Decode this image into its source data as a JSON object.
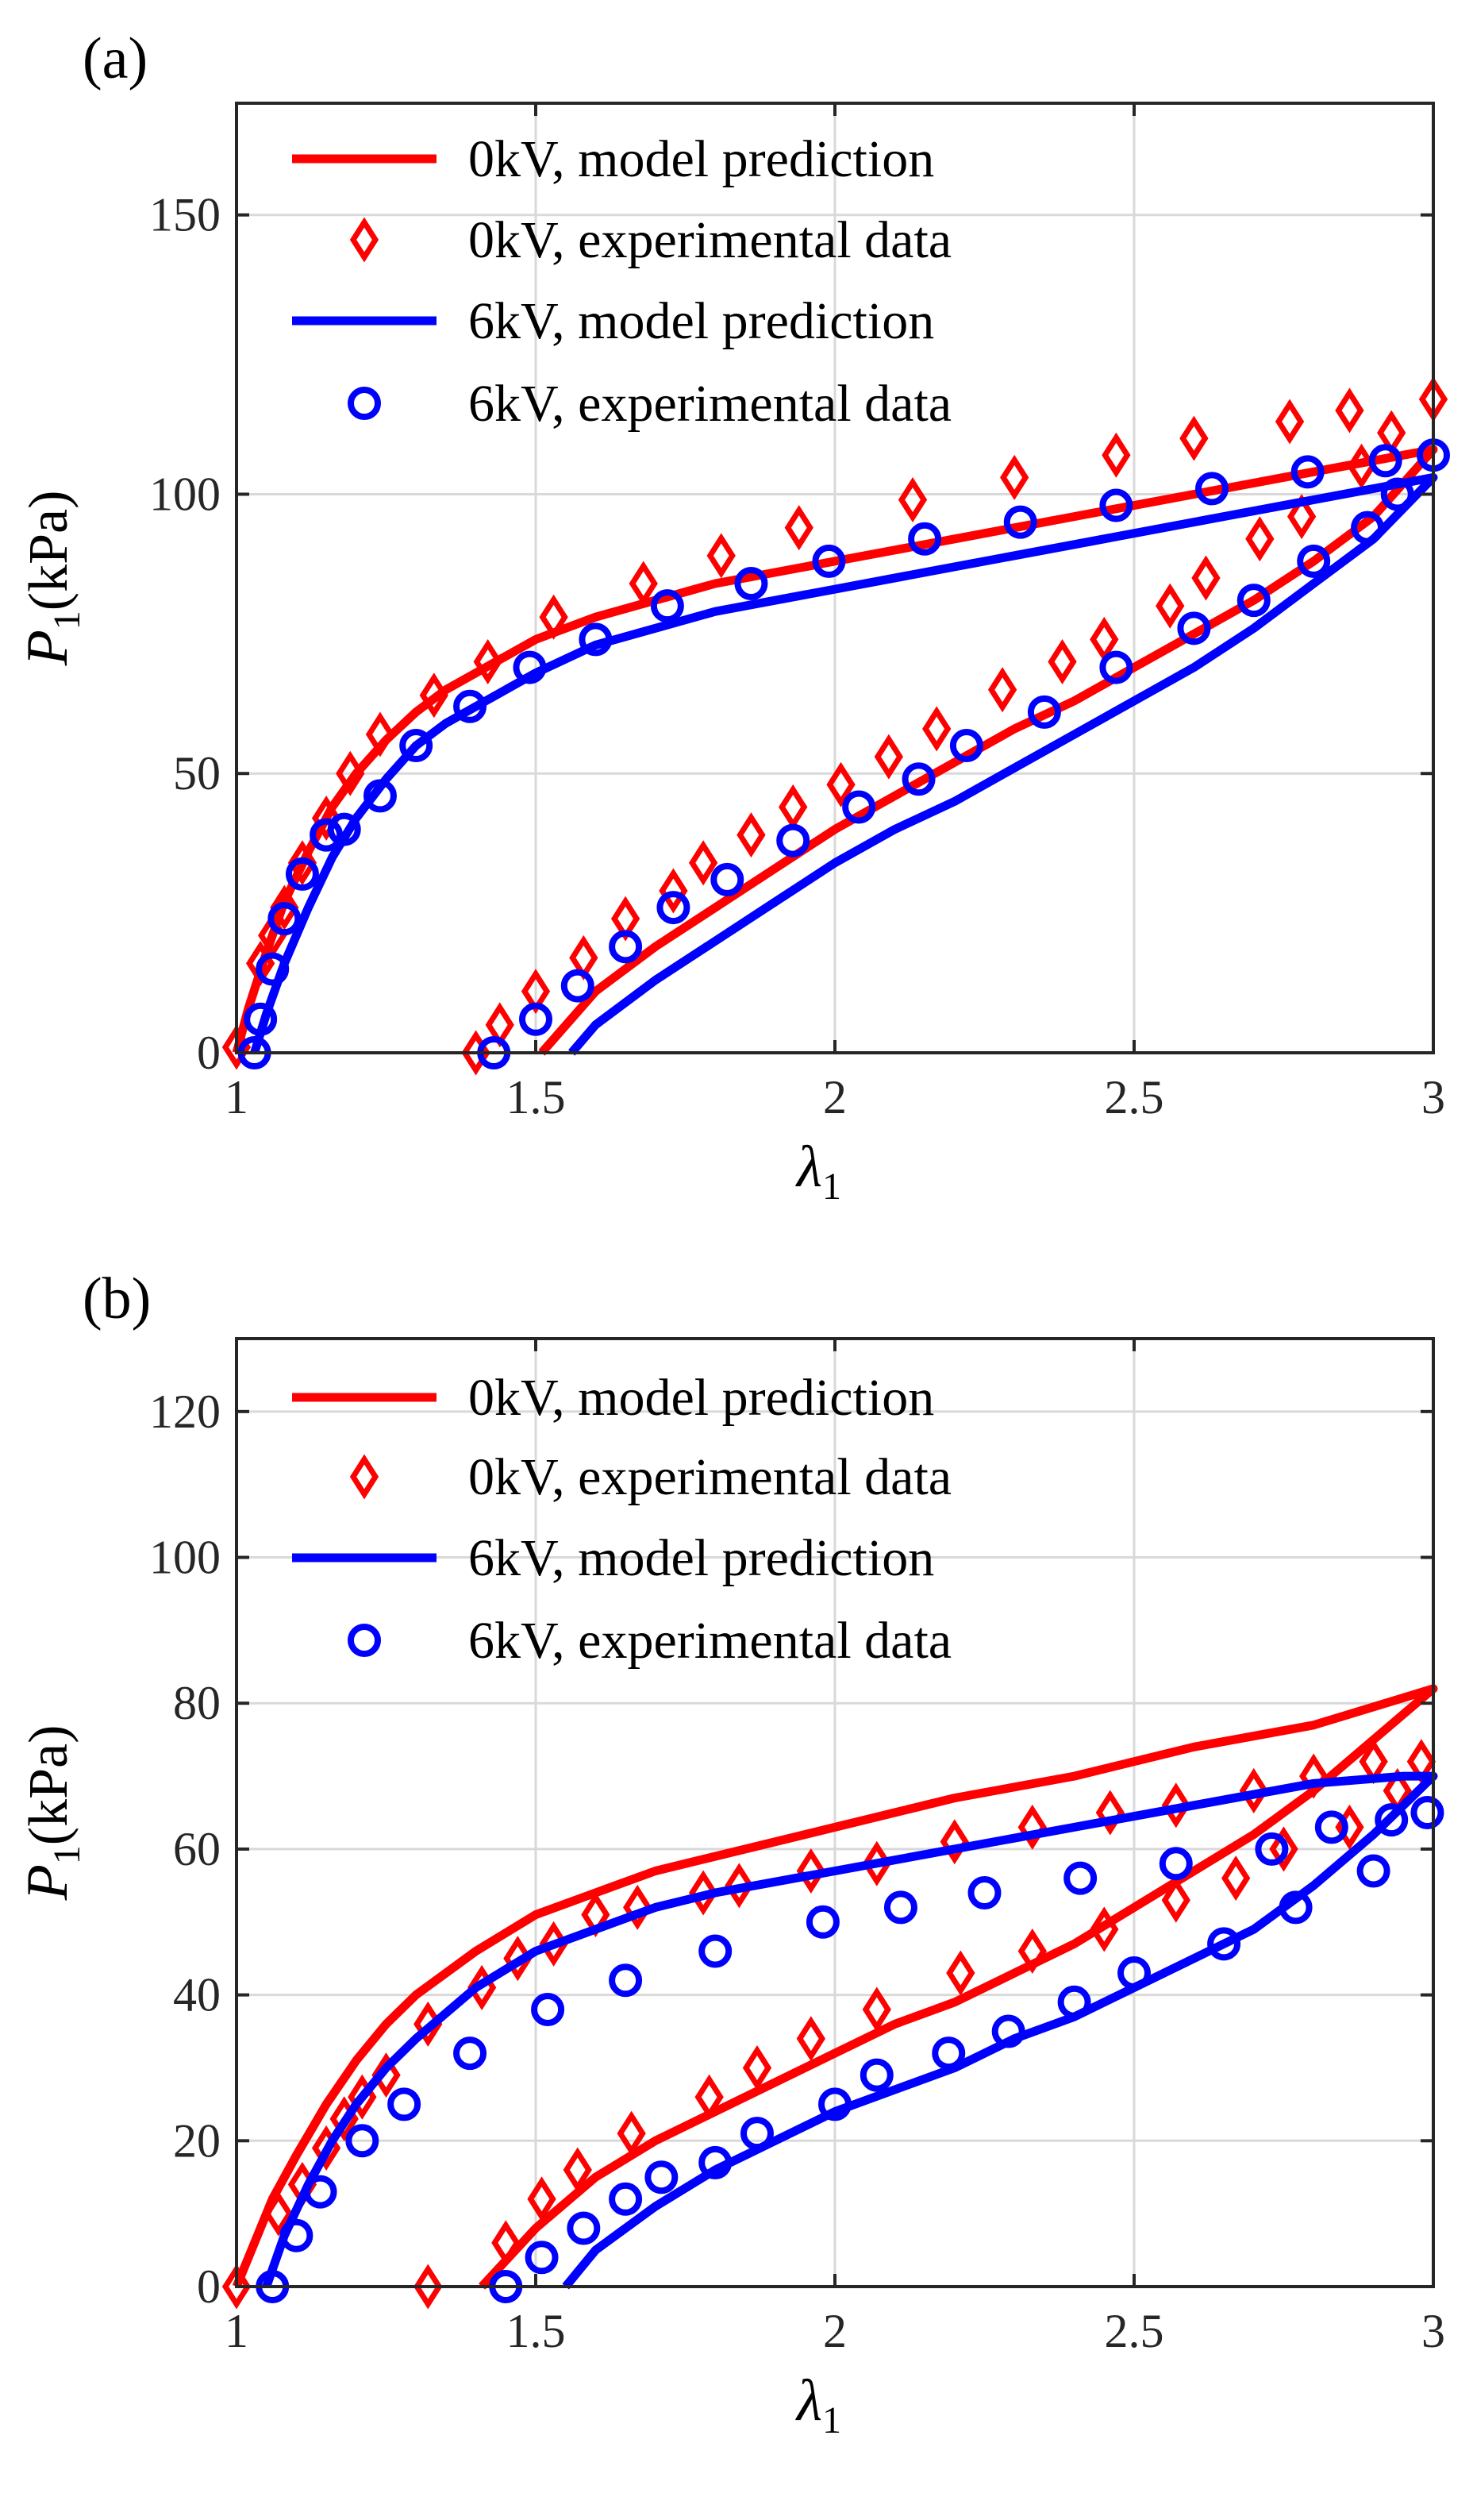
{
  "figure": {
    "colors": {
      "red": "#ff0000",
      "blue": "#0000ff",
      "grid": "#d9d9d9",
      "axis": "#262626"
    }
  },
  "chart_data": [
    {
      "panel_label": "(a)",
      "type": "line",
      "xlabel": "λ1",
      "ylabel": "P1(kPa)",
      "xlim": [
        1,
        3
      ],
      "ylim": [
        0,
        170
      ],
      "x_ticks": [
        1,
        1.5,
        2,
        2.5,
        3
      ],
      "y_ticks": [
        0,
        50,
        100,
        150
      ],
      "grid": true,
      "legend_position": "top-left",
      "series": [
        {
          "name": "0kV, model prediction",
          "kind": "line",
          "color": "#ff0000",
          "x": [
            1.0,
            1.02,
            1.05,
            1.08,
            1.12,
            1.16,
            1.2,
            1.25,
            1.3,
            1.35,
            1.4,
            1.5,
            1.6,
            1.7,
            1.8,
            2.0,
            2.2,
            2.4,
            2.6,
            2.8,
            3.0,
            2.9,
            2.8,
            2.7,
            2.6,
            2.5,
            2.4,
            2.3,
            2.2,
            2.1,
            2.0,
            1.9,
            1.8,
            1.7,
            1.6,
            1.51
          ],
          "y": [
            0,
            8,
            18,
            27,
            36,
            44,
            50,
            56,
            61,
            65,
            68,
            74,
            78,
            81,
            84,
            88,
            92,
            96,
            100,
            104,
            108,
            96,
            88,
            81,
            75,
            69,
            63,
            58,
            52,
            46,
            40,
            33,
            26,
            19,
            11,
            0
          ]
        },
        {
          "name": "0kV, experimental data",
          "kind": "marker",
          "marker": "diamond",
          "color": "#ff0000",
          "x": [
            1.0,
            1.04,
            1.06,
            1.08,
            1.11,
            1.15,
            1.19,
            1.24,
            1.33,
            1.42,
            1.53,
            1.68,
            1.81,
            1.94,
            2.13,
            2.3,
            2.47,
            2.6,
            2.76,
            2.86,
            2.93,
            3.0,
            2.88,
            2.78,
            2.71,
            2.62,
            2.56,
            2.45,
            2.38,
            2.28,
            2.17,
            2.09,
            2.01,
            1.93,
            1.86,
            1.78,
            1.73,
            1.65,
            1.58,
            1.5,
            1.44,
            1.4
          ],
          "y": [
            1,
            16,
            21,
            26,
            34,
            42,
            50,
            57,
            64,
            70,
            78,
            84,
            89,
            94,
            99,
            103,
            107,
            110,
            113,
            115,
            111,
            117,
            105,
            96,
            92,
            85,
            80,
            74,
            70,
            65,
            58,
            53,
            48,
            44,
            39,
            34,
            29,
            24,
            17,
            11,
            5,
            0
          ]
        },
        {
          "name": "6kV, model prediction",
          "kind": "line",
          "color": "#0000ff",
          "x": [
            1.03,
            1.05,
            1.08,
            1.12,
            1.16,
            1.2,
            1.25,
            1.3,
            1.35,
            1.4,
            1.5,
            1.6,
            1.7,
            1.8,
            2.0,
            2.2,
            2.4,
            2.6,
            2.8,
            3.0,
            2.9,
            2.8,
            2.7,
            2.6,
            2.5,
            2.4,
            2.3,
            2.2,
            2.1,
            2.0,
            1.9,
            1.8,
            1.7,
            1.6,
            1.56
          ],
          "y": [
            0,
            7,
            16,
            26,
            35,
            42,
            49,
            55,
            59,
            62,
            68,
            73,
            76,
            79,
            83,
            87,
            91,
            95,
            99,
            103,
            92,
            84,
            76,
            69,
            63,
            57,
            51,
            45,
            40,
            34,
            27,
            20,
            13,
            5,
            0
          ]
        },
        {
          "name": "6kV, experimental data",
          "kind": "marker",
          "marker": "circle",
          "color": "#0000ff",
          "x": [
            1.03,
            1.04,
            1.06,
            1.08,
            1.11,
            1.15,
            1.18,
            1.24,
            1.3,
            1.39,
            1.49,
            1.6,
            1.72,
            1.86,
            1.99,
            2.15,
            2.31,
            2.47,
            2.63,
            2.79,
            2.92,
            3.0,
            2.94,
            2.89,
            2.8,
            2.7,
            2.6,
            2.47,
            2.35,
            2.22,
            2.14,
            2.04,
            1.93,
            1.82,
            1.73,
            1.65,
            1.57,
            1.5,
            1.43
          ],
          "y": [
            0,
            6,
            15,
            24,
            32,
            39,
            40,
            46,
            55,
            62,
            69,
            74,
            80,
            84,
            88,
            92,
            95,
            98,
            101,
            104,
            106,
            107,
            100,
            94,
            88,
            81,
            76,
            69,
            61,
            55,
            49,
            44,
            38,
            31,
            26,
            19,
            12,
            6,
            0
          ]
        }
      ]
    },
    {
      "panel_label": "(b)",
      "type": "line",
      "xlabel": "λ1",
      "ylabel": "P1(kPa)",
      "xlim": [
        1,
        3
      ],
      "ylim": [
        0,
        130
      ],
      "x_ticks": [
        1,
        1.5,
        2,
        2.5,
        3
      ],
      "y_ticks": [
        0,
        20,
        40,
        60,
        80,
        100,
        120
      ],
      "grid": true,
      "legend_position": "top-left",
      "series": [
        {
          "name": "0kV, model prediction",
          "kind": "line",
          "color": "#ff0000",
          "x": [
            1.0,
            1.03,
            1.06,
            1.1,
            1.15,
            1.2,
            1.25,
            1.3,
            1.4,
            1.5,
            1.6,
            1.7,
            1.8,
            2.0,
            2.2,
            2.4,
            2.6,
            2.8,
            3.0,
            2.9,
            2.8,
            2.7,
            2.6,
            2.5,
            2.4,
            2.3,
            2.2,
            2.1,
            2.0,
            1.9,
            1.8,
            1.7,
            1.6,
            1.5,
            1.41
          ],
          "y": [
            0,
            6,
            12,
            18,
            25,
            31,
            36,
            40,
            46,
            51,
            54,
            57,
            59,
            63,
            67,
            70,
            74,
            77,
            82,
            75,
            68,
            62,
            57,
            52,
            47,
            43,
            39,
            36,
            32,
            28,
            24,
            20,
            15,
            8,
            0
          ]
        },
        {
          "name": "0kV, experimental data",
          "kind": "marker",
          "marker": "diamond",
          "color": "#ff0000",
          "x": [
            1.0,
            1.07,
            1.11,
            1.15,
            1.18,
            1.21,
            1.25,
            1.32,
            1.41,
            1.47,
            1.53,
            1.6,
            1.67,
            1.78,
            1.84,
            1.96,
            2.07,
            2.2,
            2.33,
            2.46,
            2.57,
            2.7,
            2.8,
            2.9,
            2.98,
            2.94,
            2.86,
            2.75,
            2.67,
            2.57,
            2.45,
            2.33,
            2.21,
            2.07,
            1.96,
            1.87,
            1.79,
            1.66,
            1.57,
            1.51,
            1.45,
            1.32
          ],
          "y": [
            0,
            10,
            14,
            19,
            23,
            26,
            29,
            36,
            41,
            45,
            47,
            51,
            52,
            54,
            55,
            57,
            58,
            61,
            63,
            65,
            66,
            68,
            70,
            72,
            72,
            68,
            63,
            60,
            56,
            53,
            49,
            46,
            43,
            38,
            34,
            30,
            26,
            21,
            16,
            12,
            6,
            0
          ]
        },
        {
          "name": "6kV, model prediction",
          "kind": "line",
          "color": "#0000ff",
          "x": [
            1.05,
            1.08,
            1.12,
            1.16,
            1.2,
            1.25,
            1.3,
            1.4,
            1.5,
            1.6,
            1.7,
            1.8,
            2.0,
            2.2,
            2.4,
            2.6,
            2.8,
            2.95,
            3.0,
            2.9,
            2.8,
            2.7,
            2.6,
            2.5,
            2.4,
            2.3,
            2.2,
            2.1,
            2.0,
            1.9,
            1.8,
            1.7,
            1.6,
            1.55
          ],
          "y": [
            0,
            7,
            14,
            20,
            25,
            30,
            34,
            41,
            46,
            49,
            52,
            54,
            57,
            60,
            63,
            66,
            69,
            70,
            70,
            62,
            55,
            49,
            45,
            41,
            37,
            34,
            30,
            27,
            24,
            20,
            16,
            11,
            5,
            0
          ]
        },
        {
          "name": "6kV, experimental data",
          "kind": "marker",
          "marker": "circle",
          "color": "#0000ff",
          "x": [
            1.06,
            1.1,
            1.14,
            1.21,
            1.28,
            1.39,
            1.52,
            1.65,
            1.8,
            1.98,
            2.11,
            2.25,
            2.41,
            2.57,
            2.73,
            2.83,
            2.93,
            2.99,
            2.9,
            2.77,
            2.65,
            2.5,
            2.4,
            2.29,
            2.19,
            2.07,
            2.0,
            1.87,
            1.8,
            1.71,
            1.65,
            1.58,
            1.51,
            1.45
          ],
          "y": [
            0,
            7,
            13,
            20,
            25,
            32,
            38,
            42,
            46,
            50,
            52,
            54,
            56,
            58,
            60,
            63,
            64,
            65,
            57,
            52,
            47,
            43,
            39,
            35,
            32,
            29,
            25,
            21,
            17,
            15,
            12,
            8,
            4,
            0
          ]
        }
      ]
    }
  ]
}
